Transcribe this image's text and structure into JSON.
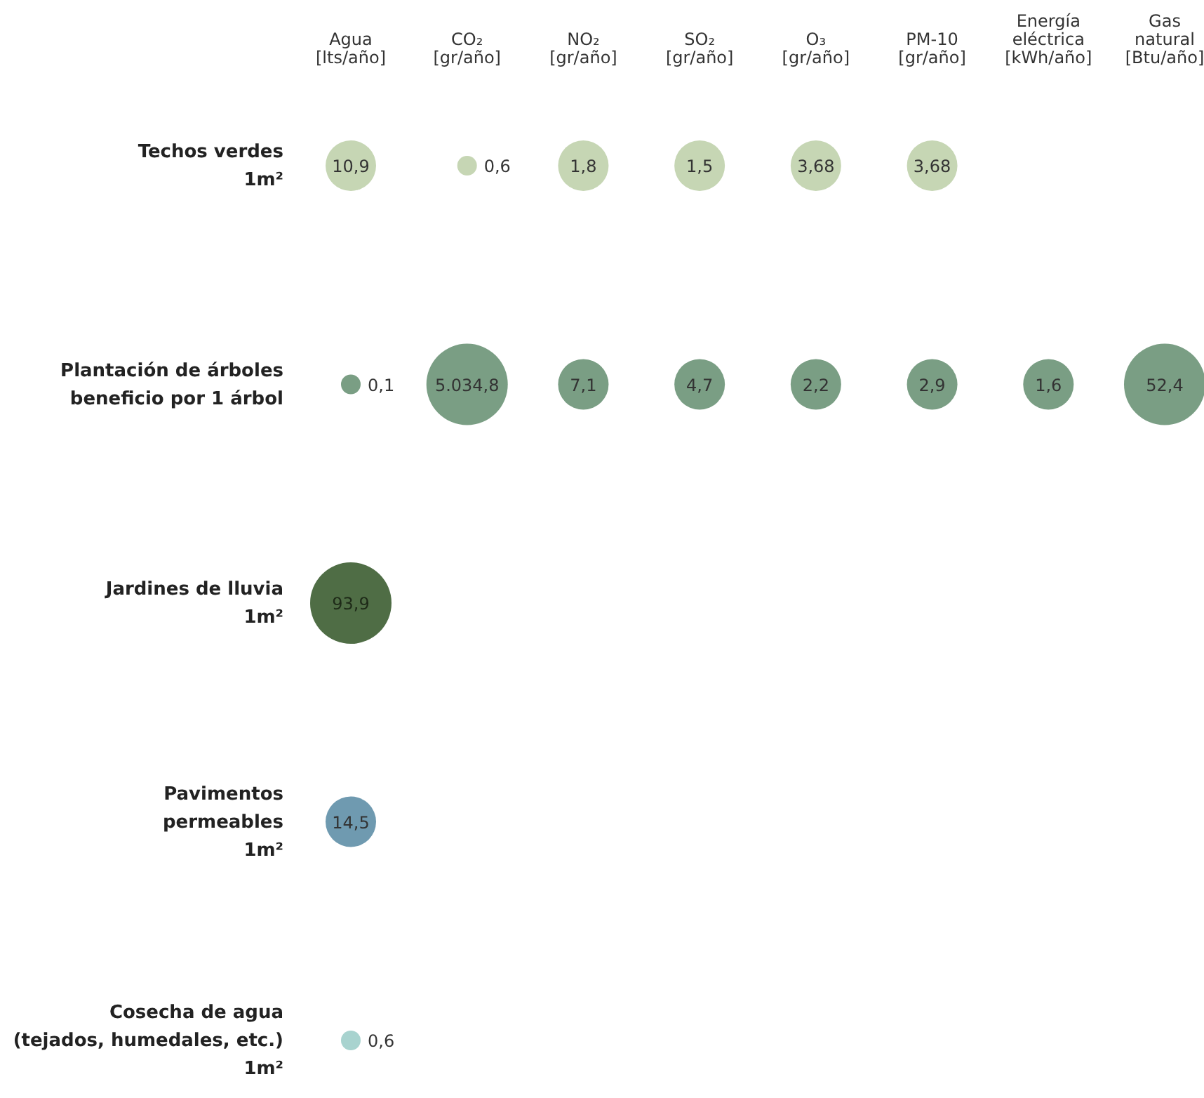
{
  "chart_data": {
    "type": "heatmap",
    "categories": [
      "Agua\n[lts/año]",
      "CO₂\n[gr/año]",
      "NO₂\n[gr/año]",
      "SO₂\n[gr/año]",
      "O₃\n[gr/año]",
      "PM-10\n[gr/año]",
      "Energía\neléctrica\n[kWh/año]",
      "Gas\nnatural\n[Btu/año]"
    ],
    "y_categories": [
      "Techos verdes\n1m²",
      "Plantación de árboles\nbeneficio por 1 árbol",
      "Jardines de lluvia\n1m²",
      "Pavimentos\npermeables\n1m²",
      "Cosecha de agua\n(tejados, humedales, etc.)\n1m²"
    ],
    "cells": [
      [
        10.9,
        0.6,
        1.8,
        1.5,
        3.68,
        3.68,
        null,
        null
      ],
      [
        0.1,
        5034.8,
        7.1,
        4.7,
        2.2,
        2.9,
        1.6,
        52.4
      ],
      [
        93.9,
        null,
        null,
        null,
        null,
        null,
        null,
        null
      ],
      [
        14.5,
        null,
        null,
        null,
        null,
        null,
        null,
        null
      ],
      [
        0.6,
        null,
        null,
        null,
        null,
        null,
        null,
        null
      ]
    ],
    "cell_labels": [
      [
        "10,9",
        "0,6",
        "1,8",
        "1,5",
        "3,68",
        "3,68",
        null,
        null
      ],
      [
        "0,1",
        "5.034,8",
        "7,1",
        "4,7",
        "2,2",
        "2,9",
        "1,6",
        "52,4"
      ],
      [
        "93,9",
        null,
        null,
        null,
        null,
        null,
        null,
        null
      ],
      [
        "14,5",
        null,
        null,
        null,
        null,
        null,
        null,
        null
      ],
      [
        "0,6",
        null,
        null,
        null,
        null,
        null,
        null,
        null
      ]
    ],
    "colors": [
      "#c6d6b4",
      "#7a9e84",
      "#4f6d45",
      "#6f9ab0",
      "#a8d3cf"
    ],
    "data_labels": true
  }
}
